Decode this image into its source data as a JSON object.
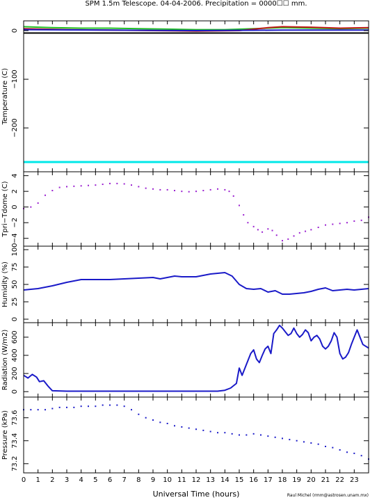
{
  "title": "SPM 1.5m Telescope. 04-04-2006. Precipitation = 0000☐☐ mm.",
  "credit": "Raul Michel (rmm@astrosen.unam.mx)",
  "xlabel": "Universal Time (hours)",
  "colors": {
    "axis": "#000000",
    "purple": "#9a1fd0",
    "blue": "#1a1ac8",
    "cyan": "#00e8e8",
    "green": "#22c022",
    "red": "#c01818",
    "black": "#000000"
  },
  "chart_data": [
    {
      "type": "line",
      "ylabel": "Temperature (C)",
      "xlim": [
        0,
        24
      ],
      "ylim": [
        -290,
        20
      ],
      "yticks": [
        0,
        -100,
        -200
      ],
      "series": [
        {
          "color": "#00e8e8",
          "x": [
            0,
            24
          ],
          "y": [
            -270,
            -270
          ]
        },
        {
          "color": "#000000",
          "x": [
            0,
            24
          ],
          "y": [
            -5,
            -5
          ]
        },
        {
          "color": "#22c022",
          "x": [
            0,
            2,
            4,
            6,
            8,
            10,
            12,
            14,
            16,
            18,
            20,
            22,
            24
          ],
          "y": [
            8,
            6,
            5,
            5,
            4,
            3,
            2,
            2,
            4,
            6,
            5,
            4,
            5
          ]
        },
        {
          "color": "#c01818",
          "x": [
            0,
            3,
            6,
            9,
            12,
            15,
            17,
            18,
            20,
            22,
            24
          ],
          "y": [
            4,
            2,
            1,
            0,
            -1,
            0,
            6,
            8,
            7,
            5,
            6
          ]
        },
        {
          "color": "#1a1ac8",
          "x": [
            0,
            6,
            12,
            18,
            24
          ],
          "y": [
            2,
            1,
            0,
            1,
            1
          ]
        }
      ]
    },
    {
      "type": "scatter",
      "ylabel": "Tpri−Tdome (C)",
      "xlim": [
        0,
        24
      ],
      "ylim": [
        -5,
        4.5
      ],
      "yticks": [
        4,
        2,
        0,
        -2,
        -4
      ],
      "series": [
        {
          "color": "#9a1fd0",
          "x": [
            0,
            0.5,
            1,
            1.5,
            2,
            2.5,
            3,
            3.5,
            4,
            4.5,
            5,
            5.5,
            6,
            6.5,
            7,
            7.5,
            8,
            8.5,
            9,
            9.5,
            10,
            10.5,
            11,
            11.5,
            12,
            12.5,
            13,
            13.5,
            14,
            14.3,
            14.6,
            15,
            15.3,
            15.6,
            16,
            16.3,
            16.6,
            17,
            17.3,
            17.6,
            18,
            18.4,
            18.8,
            19.2,
            19.6,
            20,
            20.5,
            21,
            21.5,
            22,
            22.5,
            23,
            23.5,
            24
          ],
          "y": [
            -0.2,
            0,
            0.5,
            1.5,
            2.1,
            2.5,
            2.6,
            2.65,
            2.7,
            2.75,
            2.8,
            2.9,
            3.0,
            3.0,
            2.95,
            2.8,
            2.6,
            2.4,
            2.3,
            2.2,
            2.2,
            2.1,
            2.0,
            1.95,
            2.0,
            2.1,
            2.2,
            2.3,
            2.2,
            2.0,
            1.4,
            0.2,
            -1.0,
            -2.0,
            -2.5,
            -2.9,
            -3.2,
            -2.8,
            -3.0,
            -3.6,
            -4.3,
            -4.1,
            -3.7,
            -3.3,
            -3.1,
            -2.9,
            -2.6,
            -2.3,
            -2.2,
            -2.1,
            -2.0,
            -1.8,
            -1.7,
            -1.3
          ]
        }
      ]
    },
    {
      "type": "line",
      "ylabel": "Humidity (%)",
      "xlim": [
        0,
        24
      ],
      "ylim": [
        -5,
        105
      ],
      "yticks": [
        100,
        75,
        50,
        25,
        0
      ],
      "series": [
        {
          "color": "#1a1ac8",
          "x": [
            0,
            1,
            2,
            3,
            4,
            5,
            6,
            7,
            8,
            9,
            9.5,
            10,
            10.5,
            11,
            12,
            13,
            14,
            14.5,
            15,
            15.5,
            16,
            16.5,
            17,
            17.5,
            18,
            18.5,
            19,
            19.5,
            20,
            20.5,
            21,
            21.5,
            22,
            22.5,
            23,
            23.5,
            24
          ],
          "y": [
            42,
            44,
            48,
            53,
            57,
            57,
            57,
            58,
            59,
            60,
            58,
            60,
            62,
            61,
            61,
            65,
            67,
            62,
            50,
            44,
            43,
            44,
            39,
            41,
            36,
            36,
            37,
            38,
            40,
            43,
            45,
            41,
            42,
            43,
            42,
            43,
            44
          ]
        }
      ]
    },
    {
      "type": "line",
      "ylabel": "Radiation (W/m2)",
      "xlim": [
        0,
        24
      ],
      "ylim": [
        -60,
        760
      ],
      "yticks": [
        0,
        200,
        400,
        600
      ],
      "series": [
        {
          "color": "#1a1ac8",
          "x": [
            0,
            0.3,
            0.6,
            0.9,
            1.1,
            1.4,
            1.7,
            2,
            3,
            5,
            7,
            9,
            11,
            13,
            13.5,
            14,
            14.4,
            14.8,
            15,
            15.2,
            15.5,
            15.8,
            16,
            16.2,
            16.4,
            16.6,
            16.8,
            17,
            17.2,
            17.4,
            17.6,
            17.8,
            18,
            18.2,
            18.4,
            18.6,
            18.8,
            19,
            19.2,
            19.4,
            19.6,
            19.8,
            20,
            20.2,
            20.4,
            20.6,
            20.8,
            21,
            21.2,
            21.4,
            21.6,
            21.8,
            22,
            22.2,
            22.4,
            22.6,
            22.8,
            23,
            23.2,
            23.4,
            23.6,
            24
          ],
          "y": [
            180,
            150,
            190,
            160,
            110,
            120,
            60,
            10,
            5,
            5,
            5,
            5,
            5,
            5,
            5,
            15,
            40,
            90,
            260,
            180,
            300,
            420,
            460,
            360,
            320,
            400,
            470,
            500,
            420,
            640,
            680,
            730,
            700,
            660,
            620,
            640,
            700,
            640,
            600,
            630,
            680,
            650,
            560,
            600,
            620,
            580,
            500,
            470,
            500,
            560,
            650,
            600,
            420,
            360,
            380,
            430,
            520,
            600,
            680,
            600,
            520,
            480
          ]
        }
      ]
    },
    {
      "type": "scatter",
      "ylabel": "Pressure (kPa)",
      "xlim": [
        0,
        24
      ],
      "ylim": [
        73.12,
        73.78
      ],
      "yticks": [
        73.6,
        73.4,
        73.2
      ],
      "series": [
        {
          "color": "#1a1ac8",
          "x": [
            0,
            0.5,
            1,
            1.5,
            2,
            2.5,
            3,
            3.5,
            4,
            4.5,
            5,
            5.5,
            6,
            6.5,
            7,
            7.5,
            8,
            8.5,
            9,
            9.5,
            10,
            10.5,
            11,
            11.5,
            12,
            12.5,
            13,
            13.5,
            14,
            14.5,
            15,
            15.5,
            16,
            16.5,
            17,
            17.5,
            18,
            18.5,
            19,
            19.5,
            20,
            20.5,
            21,
            21.5,
            22,
            22.5,
            23,
            23.5,
            24
          ],
          "y": [
            73.67,
            73.67,
            73.67,
            73.67,
            73.68,
            73.69,
            73.69,
            73.69,
            73.7,
            73.7,
            73.7,
            73.71,
            73.71,
            73.71,
            73.7,
            73.67,
            73.63,
            73.6,
            73.58,
            73.56,
            73.55,
            73.53,
            73.52,
            73.51,
            73.5,
            73.49,
            73.48,
            73.47,
            73.47,
            73.46,
            73.45,
            73.45,
            73.46,
            73.45,
            73.44,
            73.43,
            73.42,
            73.41,
            73.4,
            73.39,
            73.38,
            73.37,
            73.35,
            73.34,
            73.32,
            73.3,
            73.29,
            73.27,
            73.24
          ]
        }
      ]
    }
  ],
  "xticks": [
    "0",
    "1",
    "2",
    "3",
    "4",
    "5",
    "6",
    "7",
    "8",
    "9",
    "10",
    "11",
    "12",
    "13",
    "14",
    "15",
    "16",
    "17",
    "18",
    "19",
    "20",
    "21",
    "22",
    "23"
  ]
}
